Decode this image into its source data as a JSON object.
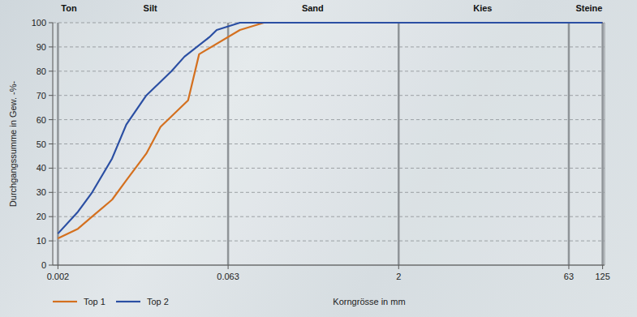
{
  "chart_data": {
    "type": "line",
    "log": "x",
    "grid": true,
    "legend": "bottom",
    "xlabel": "Korngrösse in mm",
    "ylabel": "Durchgangssumme in Gew. -%-",
    "xlim": [
      0.0018,
      130
    ],
    "ylim": [
      0,
      100
    ],
    "xticks": [
      0.002,
      0.063,
      2,
      63,
      125
    ],
    "yticks": [
      0,
      10,
      20,
      30,
      40,
      50,
      60,
      70,
      80,
      90,
      100
    ],
    "annotations": [
      {
        "text": "Ton",
        "x": 0.0025
      },
      {
        "text": "Silt",
        "x": 0.013
      },
      {
        "text": "Sand",
        "x": 0.35
      },
      {
        "text": "Kies",
        "x": 11
      },
      {
        "text": "Steine",
        "x": 95
      }
    ],
    "series": [
      {
        "name": "Top 1",
        "color": "#d4701f",
        "x": [
          0.002,
          0.003,
          0.004,
          0.006,
          0.008,
          0.012,
          0.016,
          0.028,
          0.035,
          0.08,
          0.13,
          125
        ],
        "values": [
          11,
          15,
          20,
          27,
          35,
          46,
          57,
          68,
          87,
          97,
          100,
          100
        ]
      },
      {
        "name": "Top 2",
        "color": "#2b4fa3",
        "x": [
          0.002,
          0.003,
          0.004,
          0.006,
          0.008,
          0.012,
          0.02,
          0.026,
          0.043,
          0.05,
          0.08,
          125
        ],
        "values": [
          13,
          22,
          30,
          44,
          58,
          70,
          80,
          86,
          94,
          97,
          100,
          100
        ]
      }
    ]
  }
}
